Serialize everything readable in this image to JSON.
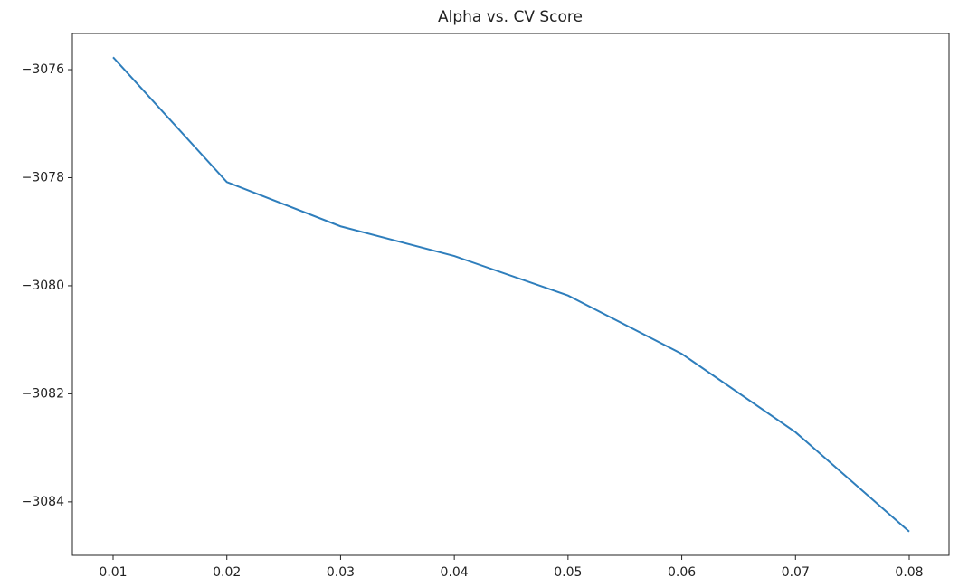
{
  "chart_data": {
    "type": "line",
    "title": "Alpha vs. CV Score",
    "x": [
      0.01,
      0.02,
      0.03,
      0.04,
      0.05,
      0.06,
      0.07,
      0.08
    ],
    "series": [
      {
        "name": "CV Score",
        "color": "#2e7ebc",
        "values": [
          -3075.77,
          -3078.08,
          -3078.9,
          -3079.45,
          -3080.18,
          -3081.26,
          -3082.71,
          -3084.55
        ]
      }
    ],
    "xlim": [
      0.00642,
      0.0835
    ],
    "xticks": [
      0.01,
      0.02,
      0.03,
      0.04,
      0.05,
      0.06,
      0.07,
      0.08
    ],
    "ylim": [
      -3084.99,
      -3075.33
    ],
    "yticks": [
      {
        "value": -3084,
        "label": "−3084"
      },
      {
        "value": -3082,
        "label": "−3082"
      },
      {
        "value": -3080,
        "label": "−3080"
      },
      {
        "value": -3078,
        "label": "−3078"
      },
      {
        "value": -3076,
        "label": "−3076"
      }
    ],
    "grid": false
  }
}
